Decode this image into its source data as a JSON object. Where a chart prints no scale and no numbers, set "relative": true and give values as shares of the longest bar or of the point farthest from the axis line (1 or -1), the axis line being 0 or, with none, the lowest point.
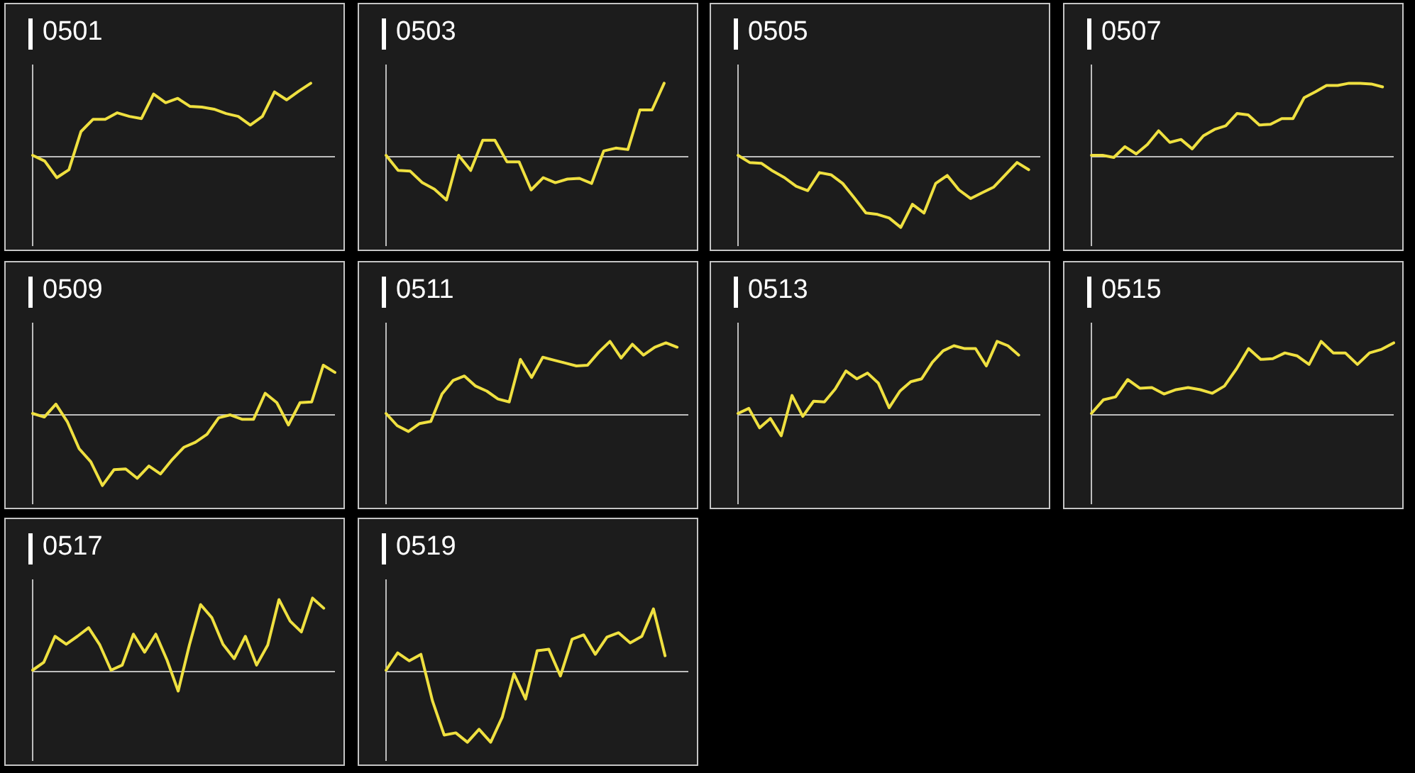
{
  "chart_data": [
    {
      "type": "line",
      "title": "0501",
      "relative": true,
      "color": "#efe040",
      "categories": [
        null,
        null,
        null,
        null,
        null,
        null,
        null,
        null,
        null,
        null,
        null,
        null,
        null,
        null,
        null,
        null,
        null,
        null,
        null,
        null,
        null,
        null,
        null,
        null,
        null,
        null
      ],
      "values": [
        0,
        -0.08,
        -0.31,
        -0.2,
        0.33,
        0.5,
        0.5,
        0.59,
        0.54,
        0.51,
        0.85,
        0.73,
        0.79,
        0.68,
        0.67,
        0.64,
        0.58,
        0.54,
        0.42,
        0.54,
        0.88,
        0.77,
        0.89,
        1,
        null,
        null
      ]
    },
    {
      "type": "line",
      "title": "0503",
      "relative": true,
      "color": "#efe040",
      "categories": [
        null,
        null,
        null,
        null,
        null,
        null,
        null,
        null,
        null,
        null,
        null,
        null,
        null,
        null,
        null,
        null,
        null,
        null,
        null,
        null,
        null,
        null,
        null,
        null,
        null,
        null
      ],
      "values": [
        0,
        -0.21,
        -0.22,
        -0.38,
        -0.47,
        -0.62,
        0,
        -0.21,
        0.21,
        0.21,
        -0.09,
        -0.09,
        -0.48,
        -0.31,
        -0.38,
        -0.33,
        -0.32,
        -0.39,
        0.06,
        0.1,
        0.08,
        0.63,
        0.63,
        1,
        null,
        null
      ]
    },
    {
      "type": "line",
      "title": "0505",
      "relative": true,
      "color": "#efe040",
      "categories": [
        null,
        null,
        null,
        null,
        null,
        null,
        null,
        null,
        null,
        null,
        null,
        null,
        null,
        null,
        null,
        null,
        null,
        null,
        null,
        null,
        null,
        null,
        null,
        null,
        null,
        null,
        null
      ],
      "values": [
        0,
        -0.1,
        -0.11,
        -0.22,
        -0.31,
        -0.43,
        -0.49,
        -0.24,
        -0.27,
        -0.39,
        -0.59,
        -0.8,
        -0.82,
        -0.87,
        -1,
        -0.68,
        -0.8,
        -0.39,
        -0.28,
        -0.48,
        -0.6,
        -0.52,
        -0.44,
        -0.27,
        -0.1,
        -0.2,
        null
      ]
    },
    {
      "type": "line",
      "title": "0507",
      "relative": true,
      "color": "#efe040",
      "categories": [
        null,
        null,
        null,
        null,
        null,
        null,
        null,
        null,
        null,
        null,
        null,
        null,
        null,
        null,
        null,
        null,
        null,
        null,
        null,
        null,
        null,
        null,
        null,
        null,
        null,
        null,
        null,
        null
      ],
      "values": [
        0,
        0,
        -0.03,
        0.12,
        0.02,
        0.15,
        0.34,
        0.18,
        0.22,
        0.09,
        0.27,
        0.36,
        0.41,
        0.58,
        0.56,
        0.42,
        0.43,
        0.51,
        0.51,
        0.8,
        0.88,
        0.97,
        0.97,
        1,
        1,
        0.99,
        0.95,
        null
      ]
    },
    {
      "type": "line",
      "title": "0509",
      "relative": true,
      "color": "#efe040",
      "categories": [
        null,
        null,
        null,
        null,
        null,
        null,
        null,
        null,
        null,
        null,
        null,
        null,
        null,
        null,
        null,
        null,
        null,
        null,
        null,
        null,
        null,
        null,
        null,
        null,
        null,
        null,
        null
      ],
      "values": [
        0,
        -0.05,
        0.13,
        -0.12,
        -0.49,
        -0.67,
        -1,
        -0.78,
        -0.77,
        -0.9,
        -0.73,
        -0.84,
        -0.64,
        -0.47,
        -0.4,
        -0.29,
        -0.06,
        -0.02,
        -0.08,
        -0.08,
        0.28,
        0.15,
        -0.16,
        0.15,
        0.16,
        0.67,
        0.57
      ]
    },
    {
      "type": "line",
      "title": "0511",
      "relative": true,
      "color": "#efe040",
      "categories": [
        null,
        null,
        null,
        null,
        null,
        null,
        null,
        null,
        null,
        null,
        null,
        null,
        null,
        null,
        null,
        null,
        null,
        null,
        null,
        null,
        null,
        null,
        null,
        null,
        null,
        null,
        null,
        null
      ],
      "values": [
        0,
        -0.17,
        -0.25,
        -0.14,
        -0.11,
        0.27,
        0.46,
        0.52,
        0.38,
        0.31,
        0.2,
        0.16,
        0.75,
        0.5,
        0.78,
        0.74,
        0.7,
        0.66,
        0.67,
        0.85,
        1,
        0.77,
        0.96,
        0.81,
        0.92,
        0.98,
        0.92,
        null
      ]
    },
    {
      "type": "line",
      "title": "0513",
      "relative": true,
      "color": "#efe040",
      "categories": [
        null,
        null,
        null,
        null,
        null,
        null,
        null,
        null,
        null,
        null,
        null,
        null,
        null,
        null,
        null,
        null,
        null,
        null,
        null,
        null,
        null,
        null,
        null,
        null,
        null,
        null,
        null,
        null,
        null
      ],
      "values": [
        0,
        0.07,
        -0.2,
        -0.07,
        -0.31,
        0.25,
        -0.04,
        0.17,
        0.16,
        0.34,
        0.59,
        0.48,
        0.56,
        0.42,
        0.08,
        0.31,
        0.44,
        0.48,
        0.71,
        0.87,
        0.94,
        0.9,
        0.9,
        0.66,
        1,
        0.94,
        0.81,
        null,
        null
      ]
    },
    {
      "type": "line",
      "title": "0515",
      "relative": true,
      "color": "#efe040",
      "categories": [
        null,
        null,
        null,
        null,
        null,
        null,
        null,
        null,
        null,
        null,
        null,
        null,
        null,
        null,
        null,
        null,
        null,
        null,
        null,
        null,
        null,
        null,
        null,
        null,
        null,
        null
      ],
      "values": [
        0,
        0.19,
        0.23,
        0.47,
        0.35,
        0.36,
        0.27,
        0.33,
        0.36,
        0.33,
        0.28,
        0.38,
        0.62,
        0.9,
        0.75,
        0.76,
        0.84,
        0.8,
        0.68,
        1,
        0.84,
        0.84,
        0.68,
        0.84,
        0.89,
        0.98
      ]
    },
    {
      "type": "line",
      "title": "0517",
      "relative": true,
      "color": "#efe040",
      "categories": [
        null,
        null,
        null,
        null,
        null,
        null,
        null,
        null,
        null,
        null,
        null,
        null,
        null,
        null,
        null,
        null,
        null,
        null,
        null,
        null,
        null,
        null,
        null,
        null,
        null,
        null,
        null,
        null
      ],
      "values": [
        0,
        0.11,
        0.47,
        0.36,
        0.47,
        0.59,
        0.35,
        0,
        0.07,
        0.5,
        0.25,
        0.5,
        0.14,
        -0.29,
        0.35,
        0.91,
        0.73,
        0.36,
        0.16,
        0.47,
        0.07,
        0.35,
        0.98,
        0.68,
        0.53,
        1,
        0.86,
        null
      ]
    },
    {
      "type": "line",
      "title": "0519",
      "relative": true,
      "color": "#efe040",
      "categories": [
        null,
        null,
        null,
        null,
        null,
        null,
        null,
        null,
        null,
        null,
        null,
        null,
        null,
        null,
        null,
        null,
        null,
        null,
        null,
        null,
        null,
        null,
        null,
        null,
        null,
        null,
        null
      ],
      "values": [
        0,
        0.24,
        0.13,
        0.22,
        -0.43,
        -0.9,
        -0.87,
        -1,
        -0.82,
        -1,
        -0.65,
        -0.05,
        -0.4,
        0.27,
        0.29,
        -0.08,
        0.43,
        0.49,
        0.22,
        0.46,
        0.52,
        0.38,
        0.47,
        0.85,
        0.2,
        null,
        null
      ]
    }
  ]
}
